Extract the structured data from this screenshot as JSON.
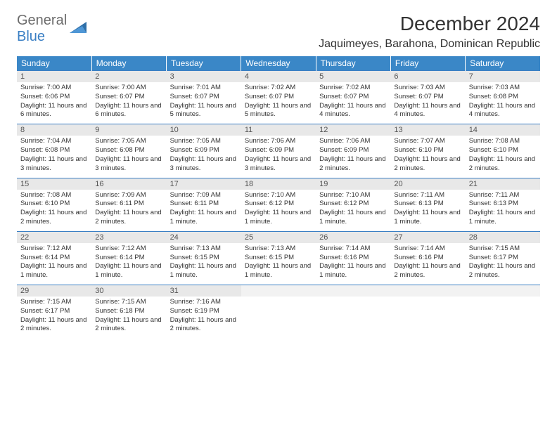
{
  "logo": {
    "general": "General",
    "blue": "Blue"
  },
  "title": "December 2024",
  "location": "Jaquimeyes, Barahona, Dominican Republic",
  "colors": {
    "header_bg": "#3a87c7",
    "header_text": "#ffffff",
    "daynum_bg": "#e8e8e8",
    "border": "#3a7fc4",
    "logo_gray": "#6b6b6b",
    "logo_blue": "#3a7fc4"
  },
  "dow": [
    "Sunday",
    "Monday",
    "Tuesday",
    "Wednesday",
    "Thursday",
    "Friday",
    "Saturday"
  ],
  "weeks": [
    [
      {
        "n": "1",
        "sr": "Sunrise: 7:00 AM",
        "ss": "Sunset: 6:06 PM",
        "dl": "Daylight: 11 hours and 6 minutes."
      },
      {
        "n": "2",
        "sr": "Sunrise: 7:00 AM",
        "ss": "Sunset: 6:07 PM",
        "dl": "Daylight: 11 hours and 6 minutes."
      },
      {
        "n": "3",
        "sr": "Sunrise: 7:01 AM",
        "ss": "Sunset: 6:07 PM",
        "dl": "Daylight: 11 hours and 5 minutes."
      },
      {
        "n": "4",
        "sr": "Sunrise: 7:02 AM",
        "ss": "Sunset: 6:07 PM",
        "dl": "Daylight: 11 hours and 5 minutes."
      },
      {
        "n": "5",
        "sr": "Sunrise: 7:02 AM",
        "ss": "Sunset: 6:07 PM",
        "dl": "Daylight: 11 hours and 4 minutes."
      },
      {
        "n": "6",
        "sr": "Sunrise: 7:03 AM",
        "ss": "Sunset: 6:07 PM",
        "dl": "Daylight: 11 hours and 4 minutes."
      },
      {
        "n": "7",
        "sr": "Sunrise: 7:03 AM",
        "ss": "Sunset: 6:08 PM",
        "dl": "Daylight: 11 hours and 4 minutes."
      }
    ],
    [
      {
        "n": "8",
        "sr": "Sunrise: 7:04 AM",
        "ss": "Sunset: 6:08 PM",
        "dl": "Daylight: 11 hours and 3 minutes."
      },
      {
        "n": "9",
        "sr": "Sunrise: 7:05 AM",
        "ss": "Sunset: 6:08 PM",
        "dl": "Daylight: 11 hours and 3 minutes."
      },
      {
        "n": "10",
        "sr": "Sunrise: 7:05 AM",
        "ss": "Sunset: 6:09 PM",
        "dl": "Daylight: 11 hours and 3 minutes."
      },
      {
        "n": "11",
        "sr": "Sunrise: 7:06 AM",
        "ss": "Sunset: 6:09 PM",
        "dl": "Daylight: 11 hours and 3 minutes."
      },
      {
        "n": "12",
        "sr": "Sunrise: 7:06 AM",
        "ss": "Sunset: 6:09 PM",
        "dl": "Daylight: 11 hours and 2 minutes."
      },
      {
        "n": "13",
        "sr": "Sunrise: 7:07 AM",
        "ss": "Sunset: 6:10 PM",
        "dl": "Daylight: 11 hours and 2 minutes."
      },
      {
        "n": "14",
        "sr": "Sunrise: 7:08 AM",
        "ss": "Sunset: 6:10 PM",
        "dl": "Daylight: 11 hours and 2 minutes."
      }
    ],
    [
      {
        "n": "15",
        "sr": "Sunrise: 7:08 AM",
        "ss": "Sunset: 6:10 PM",
        "dl": "Daylight: 11 hours and 2 minutes."
      },
      {
        "n": "16",
        "sr": "Sunrise: 7:09 AM",
        "ss": "Sunset: 6:11 PM",
        "dl": "Daylight: 11 hours and 2 minutes."
      },
      {
        "n": "17",
        "sr": "Sunrise: 7:09 AM",
        "ss": "Sunset: 6:11 PM",
        "dl": "Daylight: 11 hours and 1 minute."
      },
      {
        "n": "18",
        "sr": "Sunrise: 7:10 AM",
        "ss": "Sunset: 6:12 PM",
        "dl": "Daylight: 11 hours and 1 minute."
      },
      {
        "n": "19",
        "sr": "Sunrise: 7:10 AM",
        "ss": "Sunset: 6:12 PM",
        "dl": "Daylight: 11 hours and 1 minute."
      },
      {
        "n": "20",
        "sr": "Sunrise: 7:11 AM",
        "ss": "Sunset: 6:13 PM",
        "dl": "Daylight: 11 hours and 1 minute."
      },
      {
        "n": "21",
        "sr": "Sunrise: 7:11 AM",
        "ss": "Sunset: 6:13 PM",
        "dl": "Daylight: 11 hours and 1 minute."
      }
    ],
    [
      {
        "n": "22",
        "sr": "Sunrise: 7:12 AM",
        "ss": "Sunset: 6:14 PM",
        "dl": "Daylight: 11 hours and 1 minute."
      },
      {
        "n": "23",
        "sr": "Sunrise: 7:12 AM",
        "ss": "Sunset: 6:14 PM",
        "dl": "Daylight: 11 hours and 1 minute."
      },
      {
        "n": "24",
        "sr": "Sunrise: 7:13 AM",
        "ss": "Sunset: 6:15 PM",
        "dl": "Daylight: 11 hours and 1 minute."
      },
      {
        "n": "25",
        "sr": "Sunrise: 7:13 AM",
        "ss": "Sunset: 6:15 PM",
        "dl": "Daylight: 11 hours and 1 minute."
      },
      {
        "n": "26",
        "sr": "Sunrise: 7:14 AM",
        "ss": "Sunset: 6:16 PM",
        "dl": "Daylight: 11 hours and 1 minute."
      },
      {
        "n": "27",
        "sr": "Sunrise: 7:14 AM",
        "ss": "Sunset: 6:16 PM",
        "dl": "Daylight: 11 hours and 2 minutes."
      },
      {
        "n": "28",
        "sr": "Sunrise: 7:15 AM",
        "ss": "Sunset: 6:17 PM",
        "dl": "Daylight: 11 hours and 2 minutes."
      }
    ],
    [
      {
        "n": "29",
        "sr": "Sunrise: 7:15 AM",
        "ss": "Sunset: 6:17 PM",
        "dl": "Daylight: 11 hours and 2 minutes."
      },
      {
        "n": "30",
        "sr": "Sunrise: 7:15 AM",
        "ss": "Sunset: 6:18 PM",
        "dl": "Daylight: 11 hours and 2 minutes."
      },
      {
        "n": "31",
        "sr": "Sunrise: 7:16 AM",
        "ss": "Sunset: 6:19 PM",
        "dl": "Daylight: 11 hours and 2 minutes."
      },
      null,
      null,
      null,
      null
    ]
  ]
}
